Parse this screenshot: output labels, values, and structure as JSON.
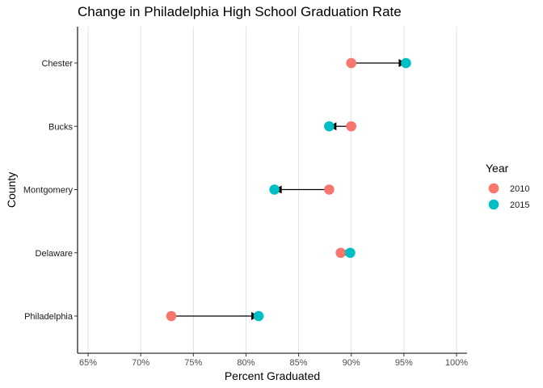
{
  "chart_data": {
    "type": "dumbbell",
    "title": "Change in Philadelphia High School Graduation Rate",
    "xlabel": "Percent Graduated",
    "ylabel": "County",
    "xlim": [
      64,
      101
    ],
    "x_ticks": [
      65,
      70,
      75,
      80,
      85,
      90,
      95,
      100
    ],
    "x_tick_labels": [
      "65%",
      "70%",
      "75%",
      "80%",
      "85%",
      "90%",
      "95%",
      "100%"
    ],
    "grid": "vertical major gridlines",
    "legend": {
      "title": "Year",
      "position": "right",
      "entries": [
        {
          "label": "2010",
          "color": "#F8766D"
        },
        {
          "label": "2015",
          "color": "#00BFC4"
        }
      ]
    },
    "categories": [
      "Chester",
      "Bucks",
      "Montgomery",
      "Delaware",
      "Philadelphia"
    ],
    "highlight": {
      "category": "Philadelphia",
      "color": "#FF0000"
    },
    "series": [
      {
        "name": "2010",
        "color": "#F8766D",
        "values": [
          90.0,
          90.0,
          87.9,
          89.0,
          72.9
        ]
      },
      {
        "name": "2015",
        "color": "#00BFC4",
        "values": [
          95.2,
          87.9,
          82.7,
          89.9,
          81.2
        ]
      }
    ],
    "arrows": "from 2010 value to 2015 value"
  }
}
